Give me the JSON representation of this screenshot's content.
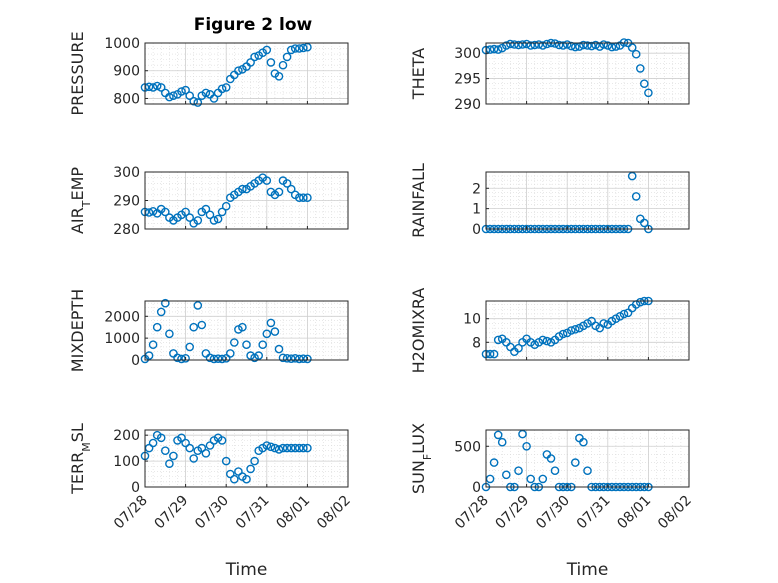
{
  "figure": {
    "title": "Figure 2 low",
    "marker_color": "#0072BD"
  },
  "chart_data": [
    {
      "type": "scatter",
      "ylabel": "PRESSURE",
      "ylim": [
        780,
        1000
      ],
      "yticks": [
        800,
        900,
        1000
      ],
      "xlim": [
        "07/28",
        "08/02"
      ],
      "xticks": [
        "07/28",
        "07/29",
        "07/30",
        "07/31",
        "08/01",
        "08/02"
      ],
      "xlabel": "",
      "grid": "on",
      "x": [
        0,
        0.1,
        0.2,
        0.3,
        0.4,
        0.5,
        0.6,
        0.7,
        0.8,
        0.9,
        1,
        1.1,
        1.2,
        1.3,
        1.4,
        1.5,
        1.6,
        1.7,
        1.8,
        1.9,
        2,
        2.1,
        2.2,
        2.3,
        2.4,
        2.5,
        2.6,
        2.7,
        2.8,
        2.9,
        3,
        3.1,
        3.2,
        3.3,
        3.4,
        3.5,
        3.6,
        3.7,
        3.8,
        3.9,
        4
      ],
      "y": [
        840,
        842,
        840,
        845,
        840,
        820,
        805,
        810,
        815,
        825,
        830,
        810,
        790,
        785,
        810,
        820,
        815,
        800,
        820,
        835,
        840,
        870,
        885,
        900,
        905,
        915,
        930,
        950,
        955,
        965,
        975,
        930,
        890,
        880,
        920,
        950,
        975,
        980,
        980,
        982,
        985
      ]
    },
    {
      "type": "scatter",
      "ylabel": "THETA",
      "ylim": [
        290,
        302
      ],
      "yticks": [
        290,
        295,
        300
      ],
      "xlim": [
        "07/28",
        "08/02"
      ],
      "xticks": [
        "07/28",
        "07/29",
        "07/30",
        "07/31",
        "08/01",
        "08/02"
      ],
      "xlabel": "",
      "grid": "on",
      "x": [
        0,
        0.1,
        0.2,
        0.3,
        0.4,
        0.5,
        0.6,
        0.7,
        0.8,
        0.9,
        1,
        1.1,
        1.2,
        1.3,
        1.4,
        1.5,
        1.6,
        1.7,
        1.8,
        1.9,
        2,
        2.1,
        2.2,
        2.3,
        2.4,
        2.5,
        2.6,
        2.7,
        2.8,
        2.9,
        3,
        3.1,
        3.2,
        3.3,
        3.4,
        3.5,
        3.6,
        3.7,
        3.8,
        3.9,
        4
      ],
      "y": [
        300.6,
        300.7,
        300.8,
        300.7,
        301,
        301.5,
        301.8,
        301.7,
        301.6,
        301.7,
        301.8,
        301.5,
        301.6,
        301.7,
        301.5,
        301.8,
        302,
        301.9,
        301.6,
        301.5,
        301.7,
        301.4,
        301.2,
        301.3,
        301.6,
        301.5,
        301.4,
        301.6,
        301.3,
        301.7,
        301.5,
        301.2,
        301.3,
        301.5,
        302.1,
        302,
        301.1,
        299.8,
        297,
        294,
        292.2
      ]
    },
    {
      "type": "scatter",
      "ylabel": "AIR_TEMP",
      "ylim": [
        280,
        300
      ],
      "yticks": [
        280,
        290,
        300
      ],
      "xlim": [
        "07/28",
        "08/02"
      ],
      "xticks": [
        "07/28",
        "07/29",
        "07/30",
        "07/31",
        "08/01",
        "08/02"
      ],
      "xlabel": "",
      "grid": "on",
      "x": [
        0,
        0.1,
        0.2,
        0.3,
        0.4,
        0.5,
        0.6,
        0.7,
        0.8,
        0.9,
        1,
        1.1,
        1.2,
        1.3,
        1.4,
        1.5,
        1.6,
        1.7,
        1.8,
        1.9,
        2,
        2.1,
        2.2,
        2.3,
        2.4,
        2.5,
        2.6,
        2.7,
        2.8,
        2.9,
        3,
        3.1,
        3.2,
        3.3,
        3.4,
        3.5,
        3.6,
        3.7,
        3.8,
        3.9,
        4
      ],
      "y": [
        286,
        285.8,
        286.2,
        285.5,
        287,
        286,
        284,
        283,
        284,
        285,
        286,
        284,
        282,
        283,
        286,
        287,
        285,
        283,
        283.5,
        286,
        288,
        291,
        292,
        293,
        294,
        294,
        295,
        296,
        297,
        298,
        297,
        293,
        292,
        293,
        297,
        296,
        294,
        292,
        291,
        291,
        291
      ]
    },
    {
      "type": "scatter",
      "ylabel": "RAINFALL",
      "ylim": [
        0,
        2.8
      ],
      "yticks": [
        0,
        1,
        2
      ],
      "xlim": [
        "07/28",
        "08/02"
      ],
      "xticks": [
        "07/28",
        "07/29",
        "07/30",
        "07/31",
        "08/01",
        "08/02"
      ],
      "xlabel": "",
      "grid": "on",
      "x": [
        0,
        0.1,
        0.2,
        0.3,
        0.4,
        0.5,
        0.6,
        0.7,
        0.8,
        0.9,
        1,
        1.1,
        1.2,
        1.3,
        1.4,
        1.5,
        1.6,
        1.7,
        1.8,
        1.9,
        2,
        2.1,
        2.2,
        2.3,
        2.4,
        2.5,
        2.6,
        2.7,
        2.8,
        2.9,
        3,
        3.1,
        3.2,
        3.3,
        3.4,
        3.5,
        3.6,
        3.7,
        3.8,
        3.9,
        4
      ],
      "y": [
        0,
        0,
        0,
        0,
        0,
        0,
        0,
        0,
        0,
        0,
        0,
        0,
        0,
        0,
        0,
        0,
        0,
        0,
        0,
        0,
        0,
        0,
        0,
        0,
        0,
        0,
        0,
        0,
        0,
        0,
        0,
        0,
        0,
        0,
        0,
        0,
        2.6,
        1.6,
        0.5,
        0.3,
        0
      ]
    },
    {
      "type": "scatter",
      "ylabel": "MIXDEPTH",
      "ylim": [
        0,
        2700
      ],
      "yticks": [
        0,
        1000,
        2000
      ],
      "xlim": [
        "07/28",
        "08/02"
      ],
      "xticks": [
        "07/28",
        "07/29",
        "07/30",
        "07/31",
        "08/01",
        "08/02"
      ],
      "xlabel": "",
      "grid": "on",
      "x": [
        0,
        0.1,
        0.2,
        0.3,
        0.4,
        0.5,
        0.6,
        0.7,
        0.8,
        0.9,
        1,
        1.1,
        1.2,
        1.3,
        1.4,
        1.5,
        1.6,
        1.7,
        1.8,
        1.9,
        2,
        2.1,
        2.2,
        2.3,
        2.4,
        2.5,
        2.6,
        2.7,
        2.8,
        2.9,
        3,
        3.1,
        3.2,
        3.3,
        3.4,
        3.5,
        3.6,
        3.7,
        3.8,
        3.9,
        4
      ],
      "y": [
        50,
        200,
        700,
        1500,
        2200,
        2600,
        1200,
        300,
        100,
        50,
        80,
        600,
        1500,
        2500,
        1600,
        300,
        100,
        50,
        60,
        50,
        80,
        300,
        800,
        1400,
        1500,
        700,
        200,
        100,
        200,
        700,
        1200,
        1700,
        1300,
        500,
        100,
        80,
        60,
        80,
        50,
        60,
        50
      ]
    },
    {
      "type": "scatter",
      "ylabel": "H2OMIXRA",
      "ylim": [
        6.5,
        11.5
      ],
      "yticks": [
        8,
        10
      ],
      "xlim": [
        "07/28",
        "08/02"
      ],
      "xticks": [
        "07/28",
        "07/29",
        "07/30",
        "07/31",
        "08/01",
        "08/02"
      ],
      "xlabel": "",
      "grid": "on",
      "x": [
        0,
        0.1,
        0.2,
        0.3,
        0.4,
        0.5,
        0.6,
        0.7,
        0.8,
        0.9,
        1,
        1.1,
        1.2,
        1.3,
        1.4,
        1.5,
        1.6,
        1.7,
        1.8,
        1.9,
        2,
        2.1,
        2.2,
        2.3,
        2.4,
        2.5,
        2.6,
        2.7,
        2.8,
        2.9,
        3,
        3.1,
        3.2,
        3.3,
        3.4,
        3.5,
        3.6,
        3.7,
        3.8,
        3.9,
        4
      ],
      "y": [
        7,
        7,
        7,
        8.2,
        8.3,
        8,
        7.6,
        7.2,
        7.5,
        8,
        8.3,
        8,
        7.8,
        8,
        8.2,
        8.1,
        8,
        8.2,
        8.5,
        8.7,
        8.8,
        9,
        9.1,
        9.2,
        9.4,
        9.6,
        9.8,
        9.4,
        9.2,
        9.6,
        9.5,
        9.8,
        10,
        10.2,
        10.4,
        10.5,
        10.9,
        11.2,
        11.4,
        11.5,
        11.5
      ]
    },
    {
      "type": "scatter",
      "ylabel": "TERR_MSL",
      "ylim": [
        0,
        220
      ],
      "yticks": [
        0,
        100,
        200
      ],
      "xlim": [
        "07/28",
        "08/02"
      ],
      "xticks": [
        "07/28",
        "07/29",
        "07/30",
        "07/31",
        "08/01",
        "08/02"
      ],
      "xlabel": "Time",
      "grid": "on",
      "x": [
        0,
        0.1,
        0.2,
        0.3,
        0.4,
        0.5,
        0.6,
        0.7,
        0.8,
        0.9,
        1,
        1.1,
        1.2,
        1.3,
        1.4,
        1.5,
        1.6,
        1.7,
        1.8,
        1.9,
        2,
        2.1,
        2.2,
        2.3,
        2.4,
        2.5,
        2.6,
        2.7,
        2.8,
        2.9,
        3,
        3.1,
        3.2,
        3.3,
        3.4,
        3.5,
        3.6,
        3.7,
        3.8,
        3.9,
        4
      ],
      "y": [
        120,
        150,
        170,
        200,
        190,
        140,
        90,
        120,
        180,
        190,
        170,
        150,
        110,
        140,
        150,
        130,
        160,
        180,
        190,
        180,
        100,
        50,
        30,
        60,
        40,
        30,
        70,
        100,
        140,
        150,
        160,
        155,
        150,
        145,
        150,
        150,
        150,
        150,
        150,
        150,
        150
      ]
    },
    {
      "type": "scatter",
      "ylabel": "SUN_FLUX",
      "ylim": [
        0,
        700
      ],
      "yticks": [
        0,
        500
      ],
      "xlim": [
        "07/28",
        "08/02"
      ],
      "xticks": [
        "07/28",
        "07/29",
        "07/30",
        "07/31",
        "08/01",
        "08/02"
      ],
      "xlabel": "Time",
      "grid": "on",
      "x": [
        0,
        0.1,
        0.2,
        0.3,
        0.4,
        0.5,
        0.6,
        0.7,
        0.8,
        0.9,
        1,
        1.1,
        1.2,
        1.3,
        1.4,
        1.5,
        1.6,
        1.7,
        1.8,
        1.9,
        2,
        2.1,
        2.2,
        2.3,
        2.4,
        2.5,
        2.6,
        2.7,
        2.8,
        2.9,
        3,
        3.1,
        3.2,
        3.3,
        3.4,
        3.5,
        3.6,
        3.7,
        3.8,
        3.9,
        4
      ],
      "y": [
        0,
        100,
        300,
        640,
        550,
        150,
        0,
        0,
        200,
        650,
        500,
        100,
        0,
        0,
        100,
        400,
        350,
        200,
        0,
        0,
        0,
        0,
        300,
        600,
        550,
        200,
        0,
        0,
        0,
        0,
        0,
        0,
        0,
        0,
        0,
        0,
        0,
        0,
        0,
        0,
        0
      ]
    }
  ]
}
